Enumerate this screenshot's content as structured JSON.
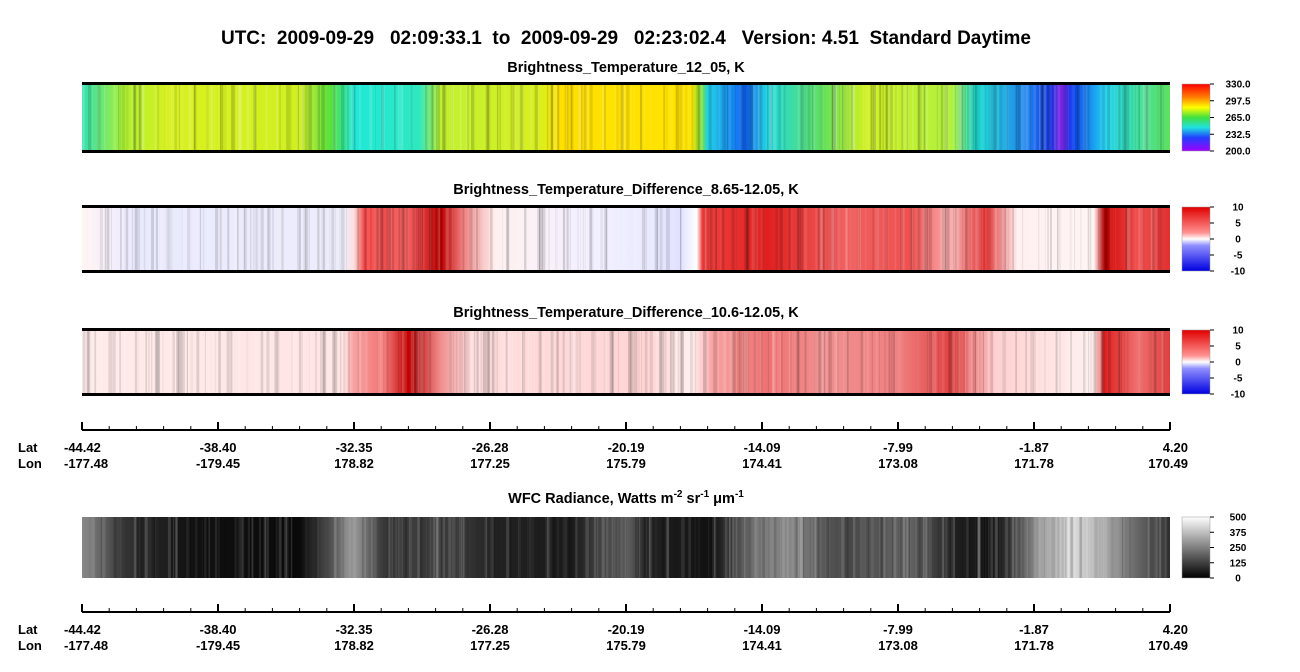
{
  "title": "UTC:  2009-09-29   02:09:33.1  to  2009-09-29   02:23:02.4   Version: 4.51  Standard Daytime",
  "panels": [
    {
      "title": [
        "Brightness_Temperature_12_05, K"
      ],
      "colorbar": [
        {
          "value": 330,
          "label": "330.0"
        },
        {
          "value": 297.5,
          "label": "297.5"
        },
        {
          "value": 265,
          "label": "265.0"
        },
        {
          "value": 232.5,
          "label": "232.5"
        },
        {
          "value": 200,
          "label": "200.0"
        }
      ]
    },
    {
      "title": [
        "Brightness_Temperature_Difference_8.65-12.05, K"
      ],
      "colorbar": [
        10,
        5,
        0,
        -5,
        -10
      ]
    },
    {
      "title": [
        "Brightness_Temperature_Difference_10.6-12.05, K"
      ],
      "colorbar": [
        10,
        5,
        0,
        -5,
        -10
      ]
    },
    {
      "title": [
        "WFC Radiance, Watts m",
        "-2",
        " sr",
        "-1",
        " μm",
        "-1"
      ],
      "colorbar": [
        500,
        375,
        250,
        125,
        0
      ]
    }
  ],
  "axes": [
    {
      "lat_label": "Lat",
      "lon_label": "Lon",
      "lat": [
        "-44.42",
        "-38.40",
        "-32.35",
        "-26.28",
        "-20.19",
        "-14.09",
        "-7.99",
        "-1.87",
        "4.20"
      ],
      "lon": [
        "-177.48",
        "-179.45",
        "178.82",
        "177.25",
        "175.79",
        "174.41",
        "173.08",
        "171.78",
        "170.49"
      ]
    },
    {
      "lat_label": "Lat",
      "lon_label": "Lon",
      "lat": [
        "-44.42",
        "-38.40",
        "-32.35",
        "-26.28",
        "-20.19",
        "-14.09",
        "-7.99",
        "-1.87",
        "4.20"
      ],
      "lon": [
        "-177.48",
        "-179.45",
        "178.82",
        "177.25",
        "175.79",
        "174.41",
        "173.08",
        "171.78",
        "170.49"
      ]
    }
  ]
}
